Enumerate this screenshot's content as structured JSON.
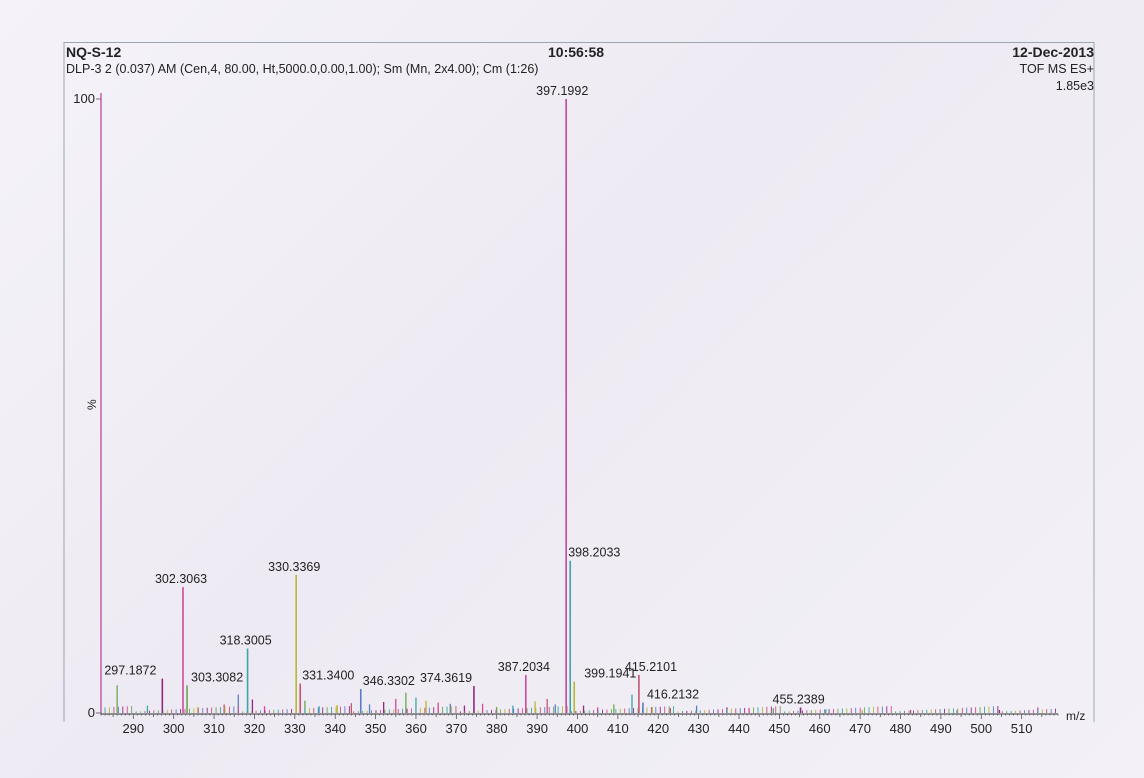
{
  "header": {
    "sample_id": "NQ-S-12",
    "time": "10:56:58",
    "date": "12-Dec-2013",
    "acquisition_params": "DLP-3 2 (0.037) AM (Cen,4, 80.00, Ht,5000.0,0.00,1.00); Sm (Mn, 2x4.00); Cm (1:26)",
    "ms_mode": "TOF MS ES+",
    "intensity_scale": "1.85e3"
  },
  "colors": {
    "frame": "#9aa6b4",
    "axis": "#333333",
    "peaks": [
      "#8e2a7e",
      "#d14a9c",
      "#6aa84f",
      "#3aa6a6",
      "#b7b73a",
      "#c25575",
      "#5a7ec2"
    ]
  },
  "chart_data": {
    "type": "bar",
    "title": "NQ-S-12",
    "xlabel": "m/z",
    "ylabel": "%",
    "xlim": [
      282,
      519
    ],
    "ylim": [
      0,
      100
    ],
    "x_ticks": [
      290,
      300,
      310,
      320,
      330,
      340,
      350,
      360,
      370,
      380,
      390,
      400,
      410,
      420,
      430,
      440,
      450,
      460,
      470,
      480,
      490,
      500,
      510
    ],
    "y_ticks": [
      0,
      100
    ],
    "labeled_peaks": [
      {
        "mz": 297.1872,
        "label": "297.1872",
        "intensity": 5.6
      },
      {
        "mz": 302.3063,
        "label": "302.3063",
        "intensity": 20.5
      },
      {
        "mz": 303.3082,
        "label": "303.3082",
        "intensity": 4.5
      },
      {
        "mz": 318.3005,
        "label": "318.3005",
        "intensity": 10.5
      },
      {
        "mz": 330.3369,
        "label": "330.3369",
        "intensity": 22.5
      },
      {
        "mz": 331.34,
        "label": "331.3400",
        "intensity": 4.8
      },
      {
        "mz": 346.3302,
        "label": "346.3302",
        "intensity": 3.9
      },
      {
        "mz": 374.3619,
        "label": "374.3619",
        "intensity": 4.4
      },
      {
        "mz": 387.2034,
        "label": "387.2034",
        "intensity": 6.2
      },
      {
        "mz": 397.1992,
        "label": "397.1992",
        "intensity": 100
      },
      {
        "mz": 398.2033,
        "label": "398.2033",
        "intensity": 24.8
      },
      {
        "mz": 399.1941,
        "label": "399.1941",
        "intensity": 5.1
      },
      {
        "mz": 415.2101,
        "label": "415.2101",
        "intensity": 6.2
      },
      {
        "mz": 416.2132,
        "label": "416.2132",
        "intensity": 1.7
      },
      {
        "mz": 455.2389,
        "label": "455.2389",
        "intensity": 0.9
      }
    ],
    "minor_peaks": [
      {
        "mz": 286.0,
        "intensity": 4.5
      },
      {
        "mz": 293.5,
        "intensity": 1.2
      },
      {
        "mz": 306.0,
        "intensity": 1.0
      },
      {
        "mz": 312.5,
        "intensity": 1.4
      },
      {
        "mz": 316.0,
        "intensity": 3.0
      },
      {
        "mz": 319.5,
        "intensity": 2.2
      },
      {
        "mz": 322.5,
        "intensity": 1.1
      },
      {
        "mz": 332.5,
        "intensity": 2.0
      },
      {
        "mz": 336.0,
        "intensity": 1.1
      },
      {
        "mz": 340.5,
        "intensity": 1.3
      },
      {
        "mz": 344.0,
        "intensity": 1.6
      },
      {
        "mz": 348.5,
        "intensity": 1.4
      },
      {
        "mz": 352.0,
        "intensity": 1.8
      },
      {
        "mz": 355.0,
        "intensity": 2.3
      },
      {
        "mz": 357.5,
        "intensity": 3.3
      },
      {
        "mz": 360.0,
        "intensity": 2.5
      },
      {
        "mz": 362.5,
        "intensity": 2.0
      },
      {
        "mz": 365.5,
        "intensity": 1.7
      },
      {
        "mz": 368.5,
        "intensity": 1.5
      },
      {
        "mz": 372.0,
        "intensity": 1.2
      },
      {
        "mz": 376.5,
        "intensity": 1.5
      },
      {
        "mz": 380.0,
        "intensity": 1.0
      },
      {
        "mz": 384.0,
        "intensity": 1.2
      },
      {
        "mz": 389.5,
        "intensity": 1.9
      },
      {
        "mz": 392.5,
        "intensity": 2.3
      },
      {
        "mz": 394.5,
        "intensity": 1.4
      },
      {
        "mz": 401.5,
        "intensity": 1.2
      },
      {
        "mz": 405.0,
        "intensity": 0.9
      },
      {
        "mz": 409.0,
        "intensity": 1.4
      },
      {
        "mz": 413.5,
        "intensity": 3.0
      },
      {
        "mz": 418.5,
        "intensity": 1.0
      },
      {
        "mz": 423.0,
        "intensity": 0.8
      },
      {
        "mz": 429.5,
        "intensity": 1.2
      },
      {
        "mz": 437.0,
        "intensity": 0.9
      },
      {
        "mz": 442.5,
        "intensity": 0.7
      },
      {
        "mz": 448.5,
        "intensity": 0.8
      },
      {
        "mz": 461.5,
        "intensity": 0.6
      },
      {
        "mz": 470.5,
        "intensity": 0.5
      },
      {
        "mz": 482.5,
        "intensity": 0.5
      },
      {
        "mz": 494.0,
        "intensity": 0.5
      },
      {
        "mz": 504.5,
        "intensity": 0.5
      },
      {
        "mz": 514.0,
        "intensity": 0.9
      }
    ]
  }
}
